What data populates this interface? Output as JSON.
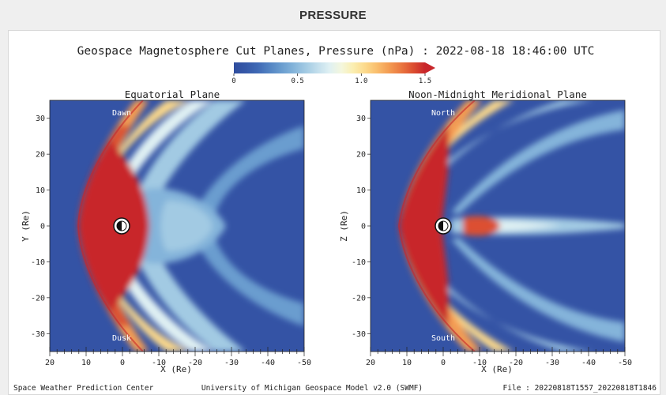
{
  "header": {
    "title": "PRESSURE"
  },
  "figure": {
    "title": "Geospace Magnetosphere Cut Planes, Pressure (nPa) : 2022-08-18 18:46:00 UTC",
    "footer_left": "Space Weather Prediction Center",
    "footer_center": "University of Michigan Geospace Model v2.0 (SWMF)",
    "footer_right": "File : 20220818T1557_20220818T1846"
  },
  "colorbar": {
    "min": 0,
    "max": 1.5,
    "ticks": [
      0,
      0.5,
      1.0,
      1.5
    ],
    "tick_labels": [
      "0",
      "0.5",
      "1.0",
      "1.5"
    ],
    "colors": [
      "#2f4d9e",
      "#3558a8",
      "#3f69b5",
      "#5384c3",
      "#6a9dcf",
      "#84b4da",
      "#a2cae3",
      "#c2deec",
      "#dff0f3",
      "#f4f7dd",
      "#fbeeb0",
      "#fcd98b",
      "#f9bd6c",
      "#f39b52",
      "#ea7740",
      "#dc4f30",
      "#c8262a"
    ],
    "over_color": "#c8262a"
  },
  "chart_data": [
    {
      "type": "heatmap",
      "title": "Equatorial Plane",
      "xlabel": "X (Re)",
      "ylabel": "Y (Re)",
      "xlim": [
        20,
        -50
      ],
      "ylim": [
        -35,
        35
      ],
      "xticks": [
        20,
        10,
        0,
        -10,
        -20,
        -30,
        -40,
        -50
      ],
      "yticks": [
        30,
        20,
        10,
        0,
        -10,
        -20,
        -30
      ],
      "annotations": [
        "Dawn",
        "Dusk"
      ],
      "bow_shock_nose_x": 12,
      "magnetopause_nose_x": 9,
      "earth": {
        "x": 0,
        "y": 0,
        "radius_re": 2.5
      }
    },
    {
      "type": "heatmap",
      "title": "Noon-Midnight Meridional Plane",
      "xlabel": "X (Re)",
      "ylabel": "Z (Re)",
      "xlim": [
        20,
        -50
      ],
      "ylim": [
        -35,
        35
      ],
      "xticks": [
        20,
        10,
        0,
        -10,
        -20,
        -30,
        -40,
        -50
      ],
      "yticks": [
        30,
        20,
        10,
        0,
        -10,
        -20,
        -30
      ],
      "annotations": [
        "North",
        "South"
      ],
      "bow_shock_nose_x": 12,
      "magnetopause_nose_x": 9,
      "plasma_sheet_x_extent": [
        0,
        -50
      ],
      "earth": {
        "x": 0,
        "y": 0,
        "radius_re": 2.5
      }
    }
  ]
}
